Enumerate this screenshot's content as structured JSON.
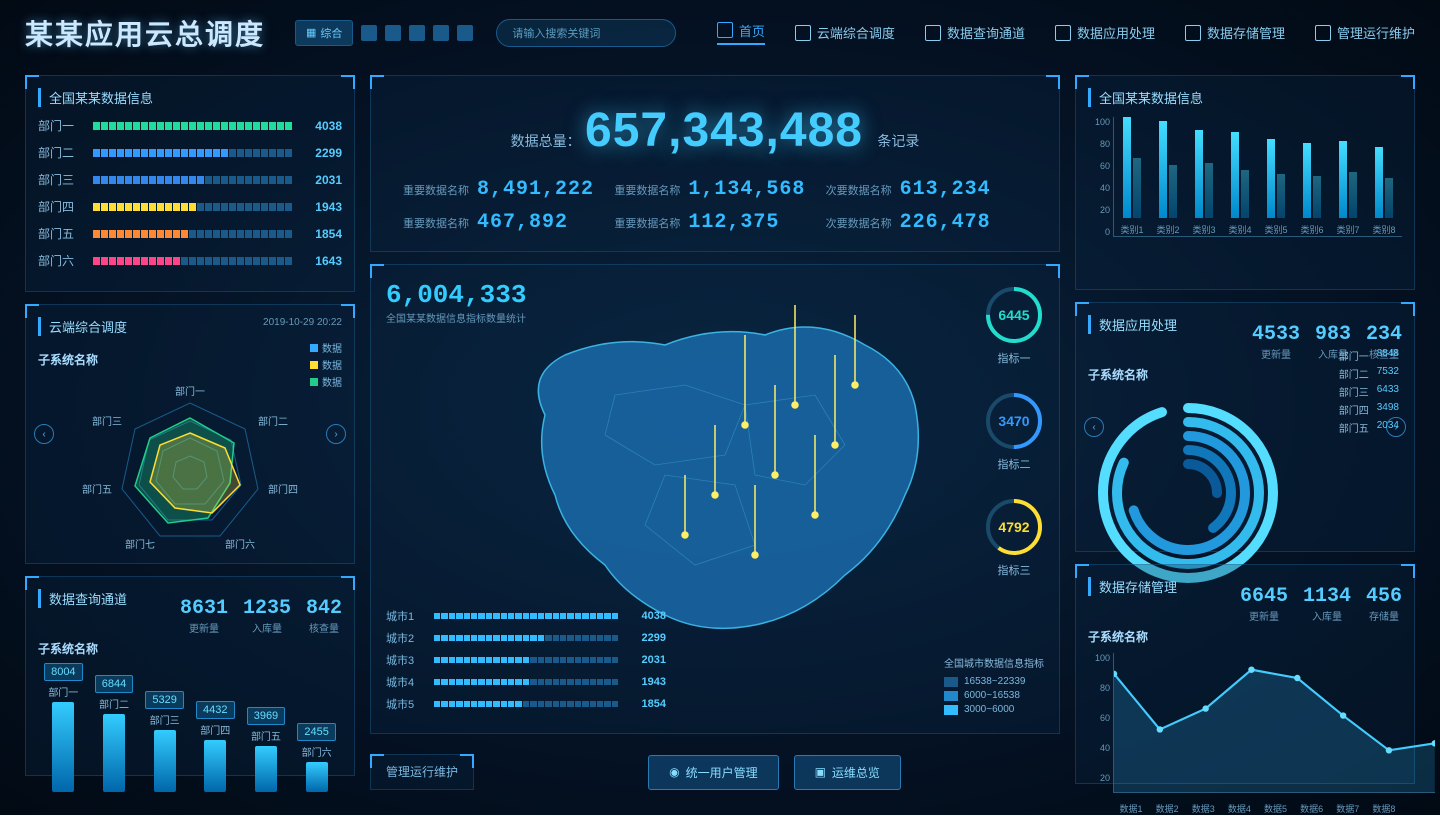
{
  "header": {
    "title": "某某应用云总调度",
    "toolbar_label": "综合",
    "search_placeholder": "请输入搜索关键词",
    "nav": [
      {
        "label": "首页",
        "active": true
      },
      {
        "label": "云端综合调度",
        "active": false
      },
      {
        "label": "数据查询通道",
        "active": false
      },
      {
        "label": "数据应用处理",
        "active": false
      },
      {
        "label": "数据存储管理",
        "active": false
      },
      {
        "label": "管理运行维护",
        "active": false
      }
    ]
  },
  "dept_panel": {
    "title": "全国某某数据信息",
    "rows": [
      {
        "label": "部门一",
        "value": 4038,
        "pct": 100,
        "color": "#22dd99"
      },
      {
        "label": "部门二",
        "value": 2299,
        "pct": 65,
        "color": "#3399ff"
      },
      {
        "label": "部门三",
        "value": 2031,
        "pct": 55,
        "color": "#3388ee"
      },
      {
        "label": "部门四",
        "value": 1943,
        "pct": 50,
        "color": "#ffdd33"
      },
      {
        "label": "部门五",
        "value": 1854,
        "pct": 48,
        "color": "#ff8833"
      },
      {
        "label": "部门六",
        "value": 1643,
        "pct": 42,
        "color": "#ff4488"
      }
    ]
  },
  "radar_panel": {
    "title": "云端综合调度",
    "timestamp": "2019-10-29 20:22",
    "sub_title": "子系统名称",
    "legend": [
      {
        "label": "数据",
        "color": "#33aaff"
      },
      {
        "label": "数据",
        "color": "#ffdd33"
      },
      {
        "label": "数据",
        "color": "#22cc88"
      }
    ],
    "axes": [
      "部门一",
      "部门二",
      "部门四",
      "部门六",
      "部门七",
      "部门五",
      "部门三"
    ]
  },
  "query_panel": {
    "title": "数据查询通道",
    "stats": [
      {
        "value": "8631",
        "label": "更新量"
      },
      {
        "value": "1235",
        "label": "入库量"
      },
      {
        "value": "842",
        "label": "核查量"
      }
    ],
    "sub_title": "子系统名称",
    "cylinders": [
      {
        "label": "部门一",
        "value": 8004,
        "h": 90
      },
      {
        "label": "部门二",
        "value": 6844,
        "h": 78
      },
      {
        "label": "部门三",
        "value": 5329,
        "h": 62
      },
      {
        "label": "部门四",
        "value": 4432,
        "h": 52
      },
      {
        "label": "部门五",
        "value": 3969,
        "h": 46
      },
      {
        "label": "部门六",
        "value": 2455,
        "h": 30
      }
    ]
  },
  "total": {
    "label": "数据总量：",
    "value": "657,343,488",
    "unit": "条记录"
  },
  "metrics": [
    {
      "label": "重要数据名称",
      "value": "8,491,222"
    },
    {
      "label": "重要数据名称",
      "value": "1,134,568"
    },
    {
      "label": "次要数据名称",
      "value": "613,234"
    },
    {
      "label": "重要数据名称",
      "value": "467,892"
    },
    {
      "label": "重要数据名称",
      "value": "112,375"
    },
    {
      "label": "次要数据名称",
      "value": "226,478"
    }
  ],
  "map": {
    "stat_value": "6,004,333",
    "stat_label": "全国某某数据信息指标数量统计",
    "gauges": [
      {
        "value": 6445,
        "label": "指标一",
        "color": "#22ddcc",
        "pct": 75
      },
      {
        "value": 3470,
        "label": "指标二",
        "color": "#3399ff",
        "pct": 50
      },
      {
        "value": 4792,
        "label": "指标三",
        "color": "#ffdd33",
        "pct": 60
      }
    ],
    "cities": [
      {
        "label": "城市1",
        "value": 4038,
        "pct": 100
      },
      {
        "label": "城市2",
        "value": 2299,
        "pct": 60
      },
      {
        "label": "城市3",
        "value": 2031,
        "pct": 52
      },
      {
        "label": "城市4",
        "value": 1943,
        "pct": 50
      },
      {
        "label": "城市5",
        "value": 1854,
        "pct": 47
      }
    ],
    "legend_title": "全国城市数据信息指标",
    "legend": [
      {
        "color": "#1a5a8a",
        "label": "16538~22339"
      },
      {
        "color": "#2288cc",
        "label": "6000~16538"
      },
      {
        "color": "#33bbff",
        "label": "3000~6000"
      }
    ]
  },
  "footer": {
    "title": "管理运行维护",
    "btn1": "统一用户管理",
    "btn2": "运维总览"
  },
  "bar_panel": {
    "title": "全国某某数据信息",
    "y_ticks": [
      100,
      80,
      60,
      40,
      20,
      0
    ],
    "categories": [
      "类别1",
      "类别2",
      "类别3",
      "类别4",
      "类别5",
      "类别6",
      "类别7",
      "类别8"
    ],
    "series_a": [
      92,
      88,
      80,
      78,
      72,
      68,
      70,
      65
    ],
    "series_b": [
      55,
      48,
      50,
      44,
      40,
      38,
      42,
      36
    ]
  },
  "app_panel": {
    "title": "数据应用处理",
    "stats": [
      {
        "value": "4533",
        "label": "更新量"
      },
      {
        "value": "983",
        "label": "入库量"
      },
      {
        "value": "234",
        "label": "核查量"
      }
    ],
    "sub_title": "子系统名称",
    "arcs": [
      {
        "label": "部门一",
        "value": 8848,
        "color": "#55ddff",
        "pct": 95
      },
      {
        "label": "部门二",
        "value": 7532,
        "color": "#33bbee",
        "pct": 82
      },
      {
        "label": "部门三",
        "value": 6433,
        "color": "#2299dd",
        "pct": 70
      },
      {
        "label": "部门四",
        "value": 3498,
        "color": "#1177bb",
        "pct": 40
      },
      {
        "label": "部门五",
        "value": 2034,
        "color": "#0a5a99",
        "pct": 25
      }
    ]
  },
  "storage_panel": {
    "title": "数据存储管理",
    "stats": [
      {
        "value": "6645",
        "label": "更新量"
      },
      {
        "value": "1134",
        "label": "入库量"
      },
      {
        "value": "456",
        "label": "存储量"
      }
    ],
    "sub_title": "子系统名称",
    "y_ticks": [
      100,
      80,
      60,
      40,
      20
    ],
    "x_labels": [
      "数据1",
      "数据2",
      "数据3",
      "数据4",
      "数据5",
      "数据6",
      "数据7",
      "数据8"
    ],
    "line_points": [
      85,
      45,
      60,
      88,
      82,
      55,
      30,
      35
    ]
  }
}
